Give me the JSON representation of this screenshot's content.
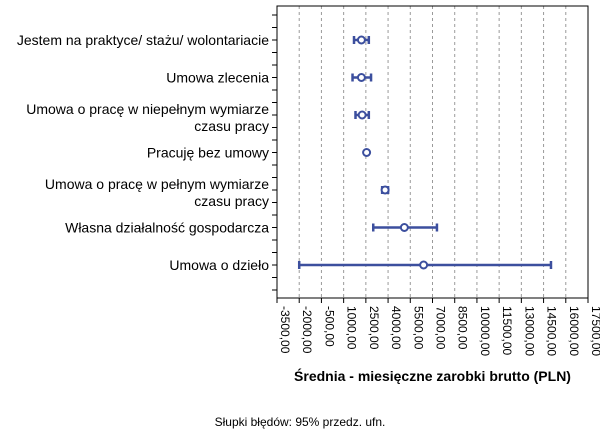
{
  "chart_data": {
    "type": "errorbar",
    "orientation": "horizontal",
    "categories": [
      "Jestem na praktyce/ stażu/ wolontariacie",
      "Umowa zlecenia",
      "Umowa o pracę w niepełnym wymiarze czasu pracy",
      "Pracuję bez umowy",
      "Umowa o pracę w pełnym wymiarze czasu pracy",
      "Własna działalność gospodarcza",
      "Umowa o dzieło"
    ],
    "category_lines": [
      [
        "Jestem na praktyce/ stażu/ wolontariacie"
      ],
      [
        "Umowa zlecenia"
      ],
      [
        "Umowa o pracę w niepełnym wymiarze",
        "czasu pracy"
      ],
      [
        "Pracuję bez umowy"
      ],
      [
        "Umowa o pracę w pełnym wymiarze",
        "czasu pracy"
      ],
      [
        "Własna działalność gospodarcza"
      ],
      [
        "Umowa o dzieło"
      ]
    ],
    "means": [
      2200,
      2200,
      2250,
      2550,
      3800,
      5100,
      6400
    ],
    "lower": [
      1700,
      1600,
      1800,
      2550,
      3600,
      3000,
      -2000
    ],
    "upper": [
      2700,
      2850,
      2700,
      2550,
      4000,
      7300,
      15000
    ],
    "xlabel": "Średnia - miesięczne zarobki brutto (PLN)",
    "ylabel": "",
    "x_ticks": [
      -3500,
      -2000,
      -500,
      1000,
      2500,
      4000,
      5500,
      7000,
      8500,
      10000,
      11500,
      13000,
      14500,
      16000,
      17500
    ],
    "x_tick_labels": [
      "-3500,00",
      "-2000,00",
      "-500,00",
      "1000,00",
      "2500,00",
      "4000,00",
      "5500,00",
      "7000,00",
      "8500,00",
      "10000,00",
      "11500,00",
      "13000,00",
      "14500,00",
      "16000,00",
      "17500,00"
    ],
    "xlim": [
      -3500,
      17500
    ],
    "grid": true,
    "series_color": "#3c4f9e",
    "footnote": "Słupki błędów: 95% przedz. ufn."
  }
}
